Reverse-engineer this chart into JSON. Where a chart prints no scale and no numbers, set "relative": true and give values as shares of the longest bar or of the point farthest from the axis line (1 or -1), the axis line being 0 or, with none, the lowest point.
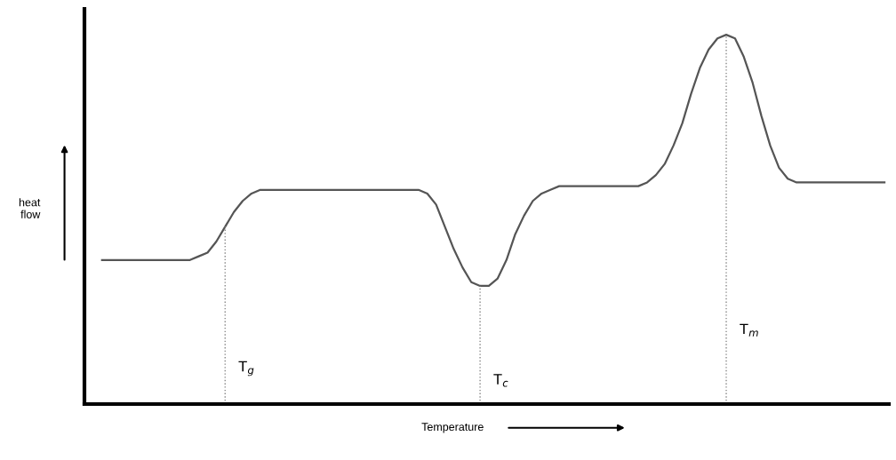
{
  "chart_data": {
    "type": "line",
    "relative": true,
    "xlabel": "Temperature",
    "ylabel": "heat flow",
    "color": "#555555",
    "categories": [
      null,
      null,
      null,
      null,
      null,
      null,
      null,
      null,
      null,
      null,
      null,
      null,
      null,
      null,
      null,
      null,
      null,
      null,
      null,
      null,
      null,
      null,
      null,
      null,
      null,
      null,
      null,
      null,
      null,
      null,
      null,
      null,
      null,
      null,
      null,
      null,
      null,
      null,
      null,
      null,
      null,
      null,
      null,
      null,
      null,
      null,
      null,
      null,
      null,
      null,
      null,
      null,
      null,
      null,
      null,
      null,
      null,
      null,
      null,
      null,
      null,
      null,
      null,
      null,
      null,
      null,
      null,
      null,
      null,
      null,
      null,
      null,
      null,
      null,
      null,
      null,
      null,
      null,
      null,
      null,
      null,
      null,
      null,
      null,
      null,
      null,
      null,
      null,
      null,
      null
    ],
    "values": [
      0.39,
      0.39,
      0.39,
      0.39,
      0.39,
      0.39,
      0.39,
      0.39,
      0.39,
      0.39,
      0.39,
      0.4,
      0.41,
      0.44,
      0.48,
      0.52,
      0.55,
      0.57,
      0.58,
      0.58,
      0.58,
      0.58,
      0.58,
      0.58,
      0.58,
      0.58,
      0.58,
      0.58,
      0.58,
      0.58,
      0.58,
      0.58,
      0.58,
      0.58,
      0.58,
      0.58,
      0.58,
      0.57,
      0.54,
      0.48,
      0.42,
      0.37,
      0.33,
      0.32,
      0.32,
      0.34,
      0.39,
      0.46,
      0.51,
      0.55,
      0.57,
      0.58,
      0.59,
      0.59,
      0.59,
      0.59,
      0.59,
      0.59,
      0.59,
      0.59,
      0.59,
      0.59,
      0.6,
      0.62,
      0.65,
      0.7,
      0.76,
      0.84,
      0.91,
      0.96,
      0.99,
      1,
      0.99,
      0.94,
      0.87,
      0.78,
      0.7,
      0.64,
      0.61,
      0.6,
      0.6,
      0.6,
      0.6,
      0.6,
      0.6,
      0.6,
      0.6,
      0.6,
      0.6,
      0.6
    ],
    "annotations": [
      "T$_{g}$",
      "T$_{c}$",
      "T$_{m}$"
    ],
    "grid": false,
    "legend": false
  }
}
